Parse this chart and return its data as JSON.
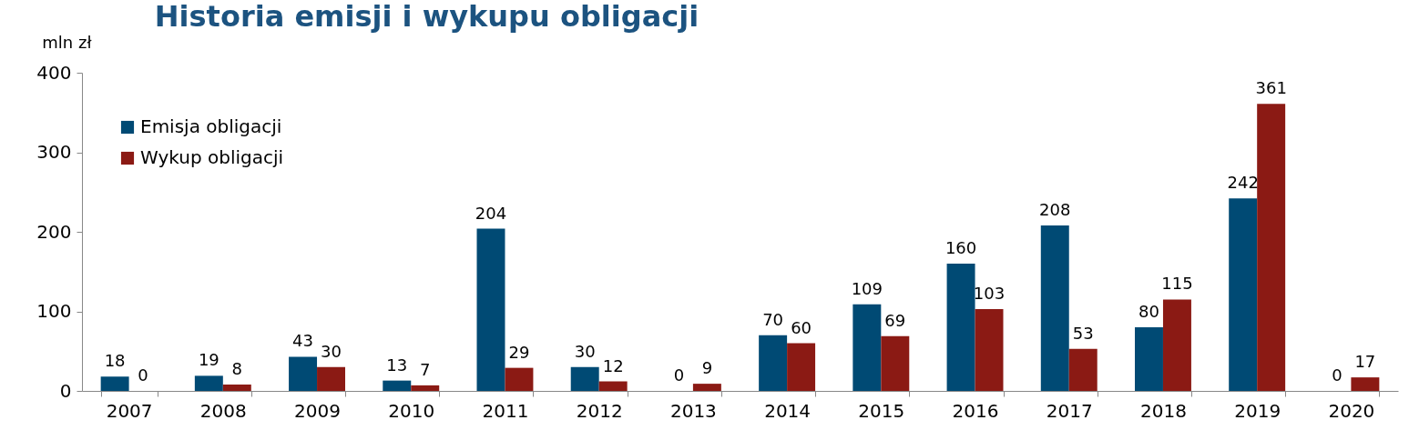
{
  "chart_data": {
    "type": "bar",
    "title": "Historia emisji i wykupu obligacji",
    "ylabel": "mln zł",
    "categories": [
      "2007",
      "2008",
      "2009",
      "2010",
      "2011",
      "2012",
      "2013",
      "2014",
      "2015",
      "2016",
      "2017",
      "2018",
      "2019",
      "2020"
    ],
    "series": [
      {
        "name": "Emisja obligacji",
        "color": "#004a74",
        "values": [
          18,
          19,
          43,
          13,
          204,
          30,
          0,
          70,
          109,
          160,
          208,
          80,
          242,
          0
        ]
      },
      {
        "name": "Wykup obligacji",
        "color": "#8b1a14",
        "values": [
          0,
          8,
          30,
          7,
          29,
          12,
          9,
          60,
          69,
          103,
          53,
          115,
          361,
          17
        ]
      }
    ],
    "ylim": [
      0,
      400
    ],
    "yticks": [
      0,
      100,
      200,
      300,
      400
    ],
    "data_labels": true,
    "legend": "top left"
  }
}
